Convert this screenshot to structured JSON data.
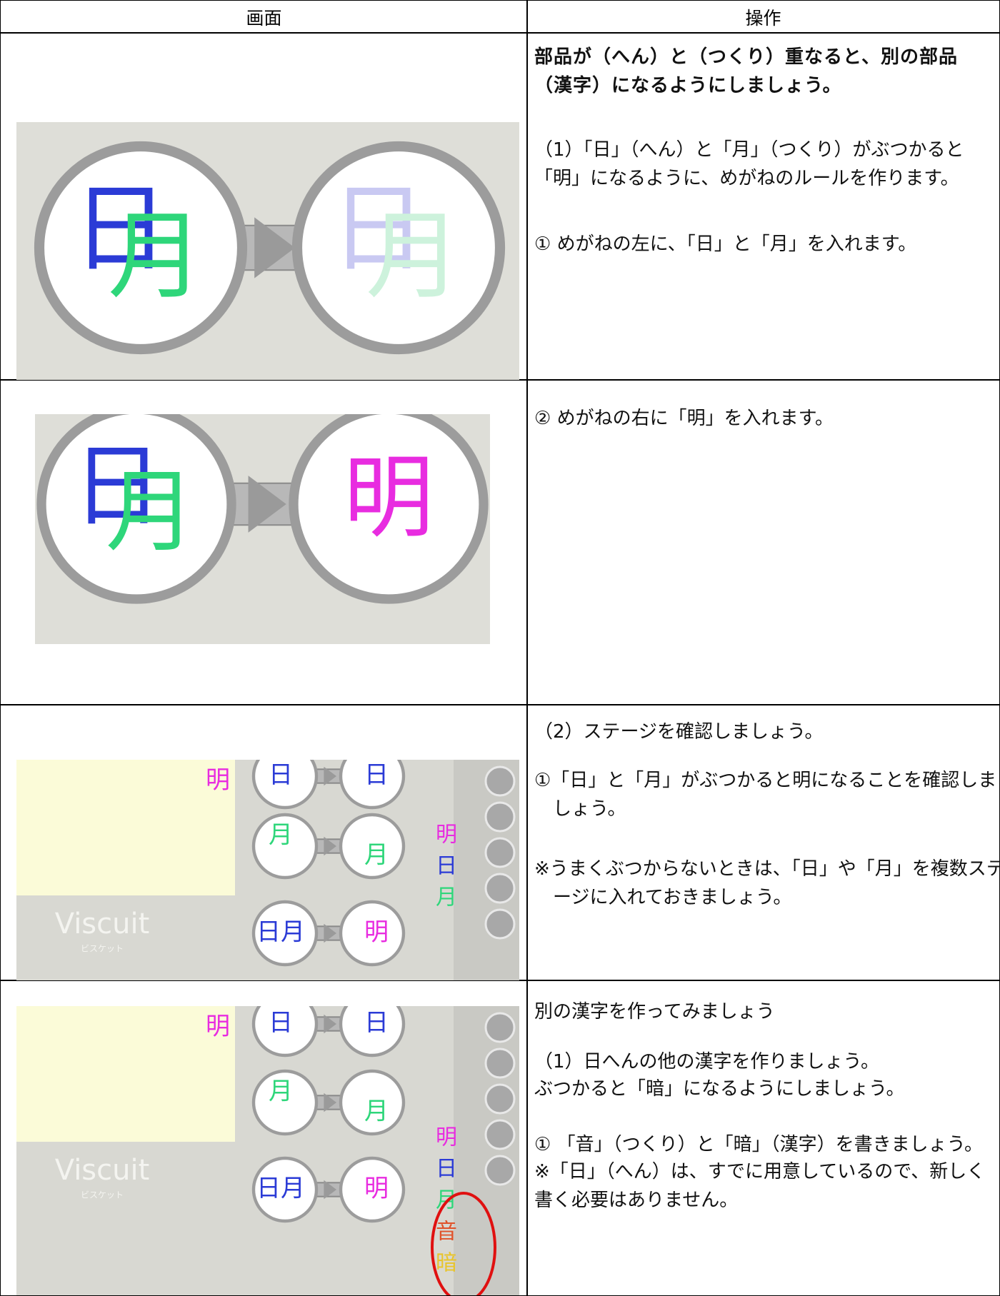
{
  "table": {
    "header": [
      "画面",
      "操作"
    ],
    "rows": [
      {
        "screen": {
          "left": [
            {
              "text": "日",
              "color": "#2b3bd6"
            },
            {
              "text": "月",
              "color": "#2ed67a"
            }
          ],
          "right": [
            {
              "text": "日",
              "color": "#c9c9f2"
            },
            {
              "text": "月",
              "color": "#cdf2dc"
            }
          ]
        },
        "operation": [
          "部品が（へん）と（つくり）重なると、別の部品（漢字）になるようにしましょう。",
          "（1）「日」（へん）と「月」（つくり）がぶつかると「明」になるように、めがねのルールを作ります。",
          "① めがねの左に、「日」と「月」を入れます。"
        ]
      },
      {
        "screen": {
          "left": [
            {
              "text": "日",
              "color": "#2b3bd6"
            },
            {
              "text": "月",
              "color": "#2ed67a"
            }
          ],
          "right": [
            {
              "text": "明",
              "color": "#e82ce0"
            }
          ]
        },
        "operation": [
          "② めがねの右に「明」を入れます。"
        ]
      },
      {
        "screen": {
          "stage": "明",
          "rules": [
            {
              "left": "日",
              "right": "日"
            },
            {
              "left": "月",
              "right": "月"
            },
            {
              "left": "日月",
              "right": "明"
            }
          ],
          "palette": [
            "明",
            "日",
            "月"
          ],
          "logo": "Viscuit",
          "logo_sub": "ビスケット"
        },
        "operation": [
          "（2）ステージを確認しましょう。",
          "①「日」と「月」がぶつかると明になることを確認しましょう。",
          "※うまくぶつからないときは、「日」や「月」を複数ステージに入れておきましょう。"
        ]
      },
      {
        "screen": {
          "stage": "明",
          "rules": [
            {
              "left": "日",
              "right": "日"
            },
            {
              "left": "月",
              "right": "月"
            },
            {
              "left": "日月",
              "right": "明"
            }
          ],
          "palette": [
            "明",
            "日",
            "月",
            "音",
            "暗"
          ],
          "logo": "Viscuit",
          "logo_sub": "ビスケット"
        },
        "operation": [
          "別の漢字を作ってみましょう",
          "（1）日へんの他の漢字を作りましょう。",
          "ぶつかると「暗」になるようにしましょう。",
          "① 「音」（つくり）と「暗」（漢字）を書きましょう。",
          "※「日」（へん）は、すでに用意しているので、新しく書く必要はありません。"
        ]
      }
    ]
  }
}
